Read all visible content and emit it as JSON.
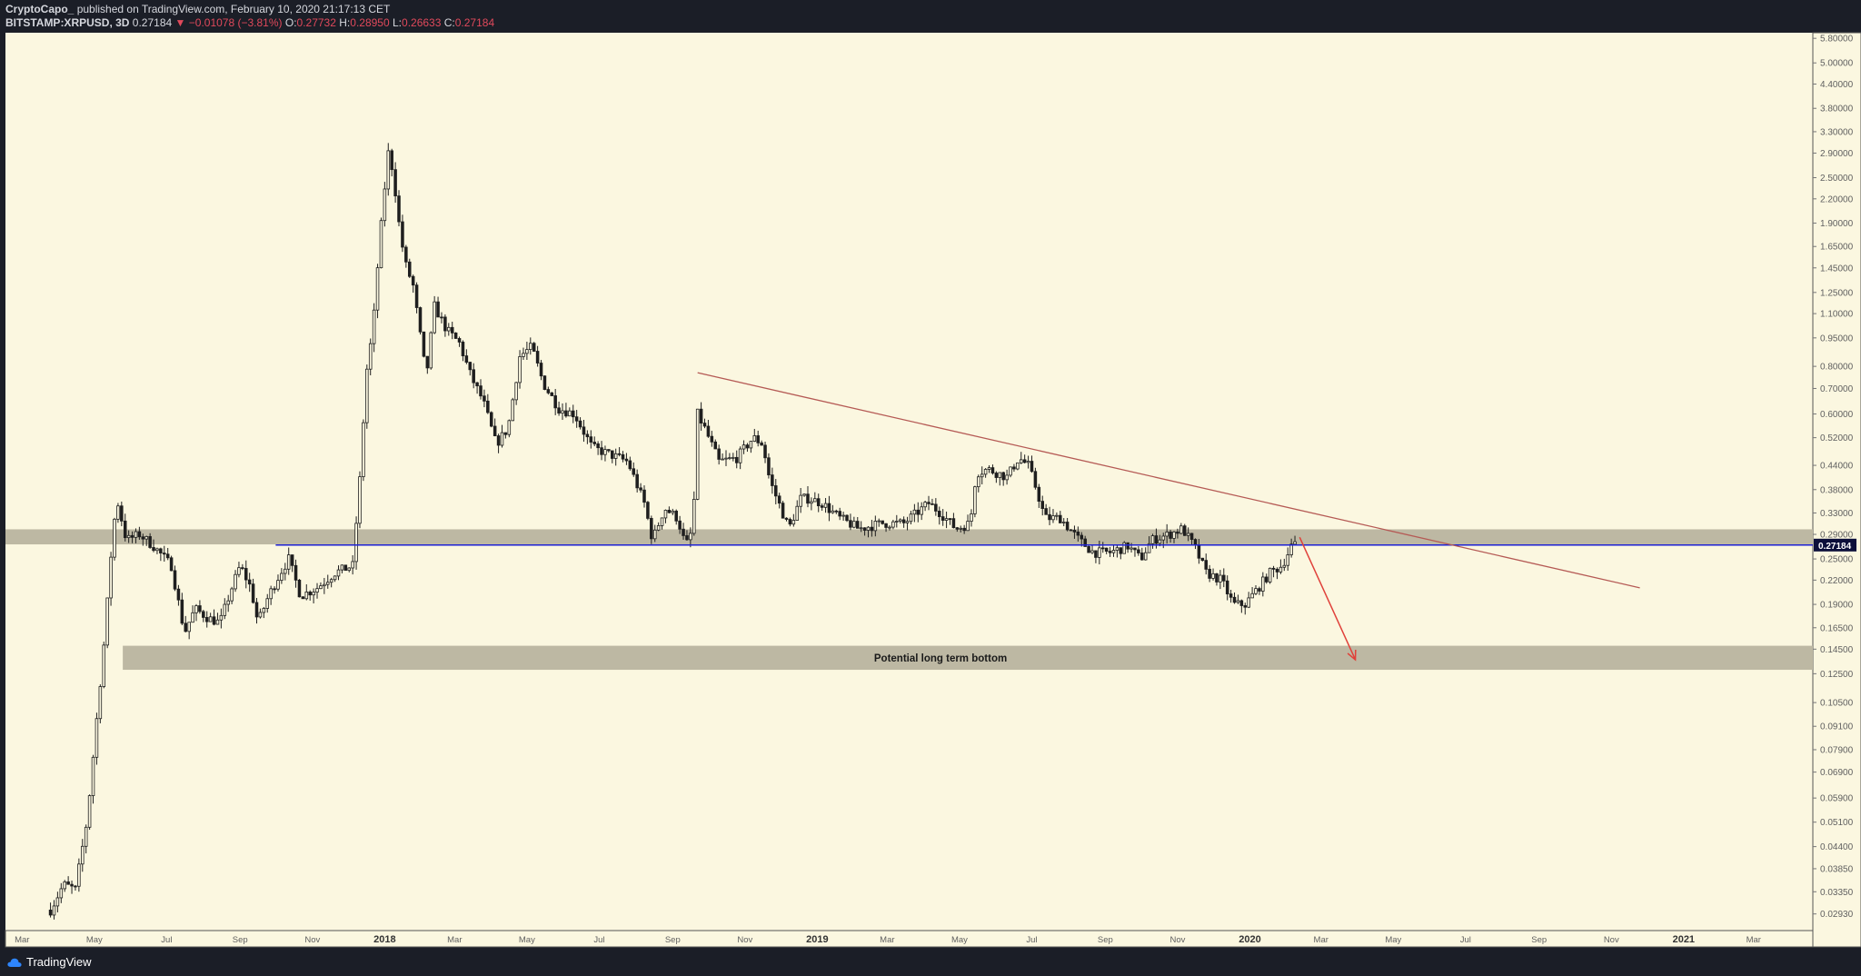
{
  "header": {
    "author": "CryptoCapo_",
    "published": "published on TradingView.com, February 10, 2020 21:17:13 CET",
    "symbol": "BITSTAMP:XRPUSD, 3D",
    "last": "0.27184",
    "change": "−0.01078 (−3.81%)",
    "o_label": "O:",
    "o": "0.27732",
    "h_label": "H:",
    "h": "0.28950",
    "l_label": "L:",
    "l": "0.26633",
    "c_label": "C:",
    "c": "0.27184"
  },
  "footer": {
    "brand": "TradingView"
  },
  "colors": {
    "background": "#fbf7e0",
    "candle": "#1f1f1f",
    "zone": "#bdb8a3",
    "support_line": "#1e22d4",
    "trendline": "#b55a55",
    "arrow": "#e0413a",
    "axis_text": "#5f5f5f"
  },
  "chart_data": {
    "type": "candlestick",
    "title": "",
    "yscale": "log",
    "ylim": [
      0.0265,
      6.0
    ],
    "xlim": [
      "2017-02-15",
      "2021-04-20"
    ],
    "y_ticks": [
      "5.80000",
      "5.00000",
      "4.40000",
      "3.80000",
      "3.30000",
      "2.90000",
      "2.50000",
      "2.20000",
      "1.90000",
      "1.65000",
      "1.45000",
      "1.25000",
      "1.10000",
      "0.95000",
      "0.80000",
      "0.70000",
      "0.60000",
      "0.52000",
      "0.44000",
      "0.38000",
      "0.33000",
      "0.29000",
      "0.25000",
      "0.22000",
      "0.19000",
      "0.16500",
      "0.14500",
      "0.12500",
      "0.10500",
      "0.09100",
      "0.07900",
      "0.06900",
      "0.05900",
      "0.05100",
      "0.04400",
      "0.03850",
      "0.03350",
      "0.02930"
    ],
    "x_ticks": [
      {
        "label": "Mar",
        "date": "2017-03-01"
      },
      {
        "label": "May",
        "date": "2017-05-01"
      },
      {
        "label": "Jul",
        "date": "2017-07-01"
      },
      {
        "label": "Sep",
        "date": "2017-09-01"
      },
      {
        "label": "Nov",
        "date": "2017-11-01"
      },
      {
        "label": "2018",
        "date": "2018-01-01"
      },
      {
        "label": "Mar",
        "date": "2018-03-01"
      },
      {
        "label": "May",
        "date": "2018-05-01"
      },
      {
        "label": "Jul",
        "date": "2018-07-01"
      },
      {
        "label": "Sep",
        "date": "2018-09-01"
      },
      {
        "label": "Nov",
        "date": "2018-11-01"
      },
      {
        "label": "2019",
        "date": "2019-01-01"
      },
      {
        "label": "Mar",
        "date": "2019-03-01"
      },
      {
        "label": "May",
        "date": "2019-05-01"
      },
      {
        "label": "Jul",
        "date": "2019-07-01"
      },
      {
        "label": "Sep",
        "date": "2019-09-01"
      },
      {
        "label": "Nov",
        "date": "2019-11-01"
      },
      {
        "label": "2020",
        "date": "2020-01-01"
      },
      {
        "label": "Mar",
        "date": "2020-03-01"
      },
      {
        "label": "May",
        "date": "2020-05-01"
      },
      {
        "label": "Jul",
        "date": "2020-07-01"
      },
      {
        "label": "Sep",
        "date": "2020-09-01"
      },
      {
        "label": "Nov",
        "date": "2020-11-01"
      },
      {
        "label": "2021",
        "date": "2021-01-01"
      },
      {
        "label": "Mar",
        "date": "2021-03-01"
      }
    ],
    "price_path": [
      [
        "2017-03-25",
        0.03
      ],
      [
        "2017-04-05",
        0.035
      ],
      [
        "2017-04-15",
        0.034
      ],
      [
        "2017-04-25",
        0.052
      ],
      [
        "2017-05-03",
        0.095
      ],
      [
        "2017-05-10",
        0.16
      ],
      [
        "2017-05-16",
        0.28
      ],
      [
        "2017-05-20",
        0.36
      ],
      [
        "2017-05-28",
        0.28
      ],
      [
        "2017-06-08",
        0.29
      ],
      [
        "2017-06-20",
        0.27
      ],
      [
        "2017-07-05",
        0.24
      ],
      [
        "2017-07-16",
        0.16
      ],
      [
        "2017-07-25",
        0.185
      ],
      [
        "2017-08-05",
        0.175
      ],
      [
        "2017-08-15",
        0.17
      ],
      [
        "2017-08-25",
        0.21
      ],
      [
        "2017-09-01",
        0.24
      ],
      [
        "2017-09-10",
        0.21
      ],
      [
        "2017-09-16",
        0.17
      ],
      [
        "2017-09-25",
        0.2
      ],
      [
        "2017-10-05",
        0.23
      ],
      [
        "2017-10-12",
        0.25
      ],
      [
        "2017-10-22",
        0.2
      ],
      [
        "2017-11-05",
        0.21
      ],
      [
        "2017-11-20",
        0.23
      ],
      [
        "2017-12-05",
        0.24
      ],
      [
        "2017-12-12",
        0.44
      ],
      [
        "2017-12-16",
        0.75
      ],
      [
        "2017-12-22",
        1.0
      ],
      [
        "2017-12-27",
        1.6
      ],
      [
        "2017-12-31",
        2.2
      ],
      [
        "2018-01-04",
        2.9
      ],
      [
        "2018-01-08",
        2.6
      ],
      [
        "2018-01-13",
        1.9
      ],
      [
        "2018-01-18",
        1.5
      ],
      [
        "2018-01-25",
        1.3
      ],
      [
        "2018-02-05",
        0.75
      ],
      [
        "2018-02-12",
        1.15
      ],
      [
        "2018-02-22",
        1.0
      ],
      [
        "2018-03-05",
        0.92
      ],
      [
        "2018-03-15",
        0.75
      ],
      [
        "2018-03-25",
        0.65
      ],
      [
        "2018-04-05",
        0.5
      ],
      [
        "2018-04-15",
        0.55
      ],
      [
        "2018-04-25",
        0.85
      ],
      [
        "2018-05-05",
        0.9
      ],
      [
        "2018-05-15",
        0.72
      ],
      [
        "2018-05-28",
        0.62
      ],
      [
        "2018-06-10",
        0.6
      ],
      [
        "2018-06-25",
        0.49
      ],
      [
        "2018-07-10",
        0.47
      ],
      [
        "2018-07-25",
        0.45
      ],
      [
        "2018-08-08",
        0.35
      ],
      [
        "2018-08-15",
        0.28
      ],
      [
        "2018-08-25",
        0.34
      ],
      [
        "2018-09-05",
        0.32
      ],
      [
        "2018-09-12",
        0.27
      ],
      [
        "2018-09-18",
        0.3
      ],
      [
        "2018-09-22",
        0.6
      ],
      [
        "2018-09-28",
        0.55
      ],
      [
        "2018-10-10",
        0.45
      ],
      [
        "2018-10-25",
        0.46
      ],
      [
        "2018-11-08",
        0.52
      ],
      [
        "2018-11-16",
        0.5
      ],
      [
        "2018-11-22",
        0.4
      ],
      [
        "2018-11-28",
        0.36
      ],
      [
        "2018-12-08",
        0.3
      ],
      [
        "2018-12-18",
        0.36
      ],
      [
        "2018-12-25",
        0.36
      ],
      [
        "2019-01-05",
        0.35
      ],
      [
        "2019-01-20",
        0.32
      ],
      [
        "2019-02-05",
        0.3
      ],
      [
        "2019-02-25",
        0.31
      ],
      [
        "2019-03-15",
        0.31
      ],
      [
        "2019-04-05",
        0.35
      ],
      [
        "2019-04-15",
        0.33
      ],
      [
        "2019-04-28",
        0.3
      ],
      [
        "2019-05-10",
        0.31
      ],
      [
        "2019-05-15",
        0.42
      ],
      [
        "2019-05-25",
        0.43
      ],
      [
        "2019-06-10",
        0.41
      ],
      [
        "2019-06-20",
        0.46
      ],
      [
        "2019-06-28",
        0.44
      ],
      [
        "2019-07-05",
        0.38
      ],
      [
        "2019-07-12",
        0.32
      ],
      [
        "2019-07-25",
        0.32
      ],
      [
        "2019-08-10",
        0.28
      ],
      [
        "2019-08-22",
        0.26
      ],
      [
        "2019-09-05",
        0.26
      ],
      [
        "2019-09-20",
        0.27
      ],
      [
        "2019-10-01",
        0.25
      ],
      [
        "2019-10-10",
        0.28
      ],
      [
        "2019-10-25",
        0.29
      ],
      [
        "2019-11-05",
        0.3
      ],
      [
        "2019-11-15",
        0.27
      ],
      [
        "2019-11-25",
        0.23
      ],
      [
        "2019-12-08",
        0.22
      ],
      [
        "2019-12-18",
        0.19
      ],
      [
        "2019-12-28",
        0.19
      ],
      [
        "2020-01-08",
        0.21
      ],
      [
        "2020-01-18",
        0.23
      ],
      [
        "2020-01-28",
        0.24
      ],
      [
        "2020-02-05",
        0.27
      ],
      [
        "2020-02-10",
        0.27184
      ]
    ],
    "annotations": {
      "resistance_zone": {
        "from": "2017-02-15",
        "to": "2021-04-20",
        "y_low": 0.273,
        "y_high": 0.299
      },
      "support_line": {
        "from": "2017-10-01",
        "to": "2021-04-20",
        "y": 0.27184
      },
      "bottom_zone": {
        "from": "2017-05-25",
        "to": "2021-04-20",
        "y_low": 0.128,
        "y_high": 0.148,
        "label": "Potential long term bottom"
      },
      "trendline": {
        "from_date": "2018-09-22",
        "from_y": 0.77,
        "to_date": "2020-11-25",
        "to_y": 0.21
      },
      "arrow": {
        "from_date": "2020-02-12",
        "from_y": 0.285,
        "to_date": "2020-03-30",
        "to_y": 0.136
      },
      "price_label": "0.27184"
    }
  }
}
